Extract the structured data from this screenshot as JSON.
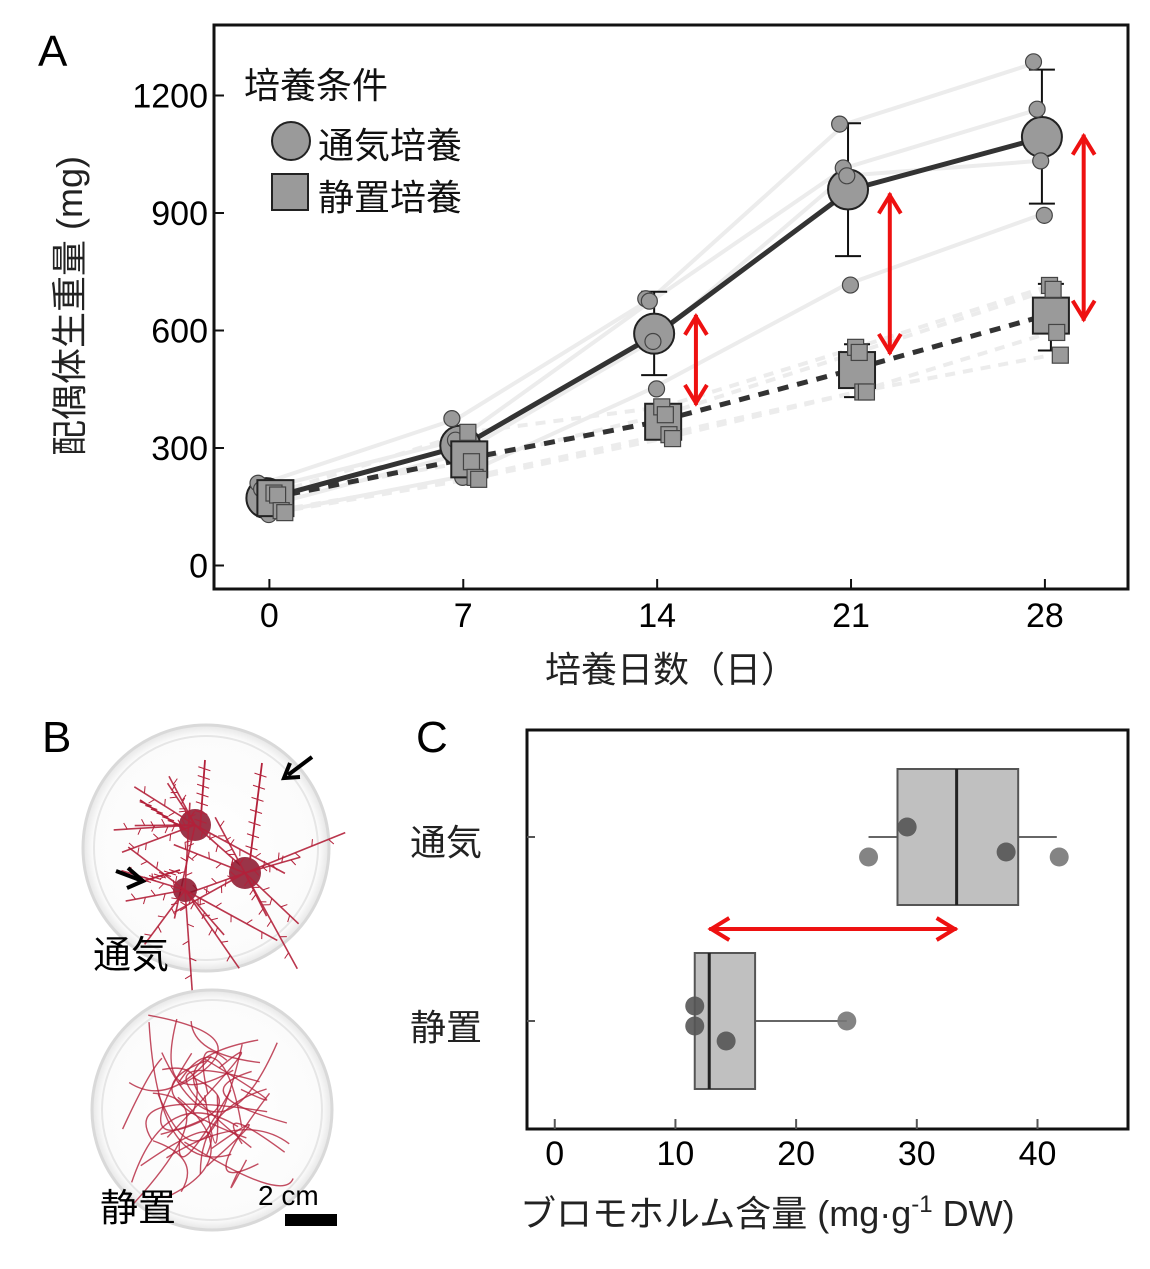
{
  "figure": {
    "panels": [
      "A",
      "B",
      "C"
    ]
  },
  "chart_data": [
    {
      "id": "A",
      "type": "line",
      "title": "",
      "xlabel": "培養日数（日）",
      "ylabel": "配偶体生重量 (mg)",
      "x": [
        0,
        7,
        14,
        21,
        28
      ],
      "x_ticks": [
        "0",
        "7",
        "14",
        "21",
        "28"
      ],
      "y_ticks": [
        "0",
        "300",
        "600",
        "900",
        "1200"
      ],
      "y_tick_values": [
        0,
        300,
        600,
        900,
        1200
      ],
      "xlim": [
        -2,
        31
      ],
      "ylim": [
        -60,
        1380
      ],
      "grid": false,
      "legend": {
        "title": "培養条件",
        "placement": "top-left",
        "entries": [
          {
            "label": "通気培養",
            "marker": "circle"
          },
          {
            "label": "静置培養",
            "marker": "square"
          }
        ]
      },
      "series": [
        {
          "name": "通気培養",
          "marker": "circle",
          "line_style": "solid",
          "mean": [
            172,
            306,
            592,
            960,
            1094
          ],
          "err_low": [
            150,
            265,
            486,
            790,
            924
          ],
          "err_high": [
            195,
            345,
            699,
            1129,
            1266
          ],
          "replicates": [
            [
              210,
              375,
              681,
              1127,
              1286
            ],
            [
              195,
              320,
              675,
              1015,
              1165
            ],
            [
              150,
              282,
              572,
              995,
              1033
            ],
            [
              130,
              225,
              451,
              716,
              894
            ]
          ]
        },
        {
          "name": "静置培養",
          "marker": "square",
          "line_style": "dashed",
          "mean": [
            172,
            271,
            367,
            499,
            638
          ],
          "err_low": [
            140,
            230,
            330,
            430,
            549
          ],
          "err_high": [
            190,
            310,
            405,
            565,
            719
          ],
          "replicates": [
            [
              185,
              340,
              405,
              557,
              715
            ],
            [
              180,
              265,
              385,
              544,
              705
            ],
            [
              140,
              225,
              334,
              443,
              595
            ],
            [
              135,
              220,
              324,
              443,
              537
            ]
          ]
        }
      ],
      "annotations": [
        {
          "type": "double-arrow",
          "x": 15.4,
          "from": 640,
          "to": 410,
          "color": "#ee1111"
        },
        {
          "type": "double-arrow",
          "x": 22.4,
          "from": 950,
          "to": 540,
          "color": "#ee1111"
        },
        {
          "type": "double-arrow",
          "x": 29.4,
          "from": 1100,
          "to": 625,
          "color": "#ee1111"
        }
      ]
    },
    {
      "id": "C",
      "type": "box",
      "title": "",
      "xlabel": "ブロモホルム含量 (mg·g⁻¹ DW)",
      "xlabel_parts": {
        "main": "ブロモホルム含量 (mg·g",
        "sup": "-1",
        "tail": " DW)"
      },
      "ylabel": "",
      "x_ticks": [
        "0",
        "10",
        "20",
        "30",
        "40"
      ],
      "x_tick_values": [
        0,
        10,
        20,
        30,
        40
      ],
      "xlim": [
        -2.3,
        47.5
      ],
      "grid": false,
      "categories": [
        "通気",
        "静置"
      ],
      "boxes": [
        {
          "name": "通気",
          "whisker_low": 26.0,
          "q1": 28.4,
          "median": 33.3,
          "q3": 38.4,
          "whisker_high": 41.6,
          "points": [
            26.0,
            29.2,
            37.4,
            41.8
          ],
          "point_offsets": [
            -0.2,
            0.1,
            -0.15,
            -0.2
          ]
        },
        {
          "name": "静置",
          "whisker_low": 11.6,
          "q1": 11.6,
          "median": 12.8,
          "q3": 16.6,
          "whisker_high": 24.2,
          "points": [
            11.6,
            11.6,
            14.2,
            24.2
          ],
          "point_offsets": [
            0.15,
            -0.05,
            -0.2,
            0
          ]
        }
      ],
      "annotations": [
        {
          "type": "double-arrow",
          "from": 12.8,
          "to": 33.3,
          "color": "#ee1111"
        }
      ]
    }
  ],
  "panel_b": {
    "label": "B",
    "photos": [
      {
        "label": "通気",
        "description": "aerated culture petri dish with branched red gametophytes",
        "arrows": 2
      },
      {
        "label": "静置",
        "description": "static culture petri dish with tangled red filaments"
      }
    ],
    "scale_bar_label": "2 cm"
  },
  "colors": {
    "marker_fill": "#9a9a9a",
    "mean_line": "#333333",
    "replicate_line": "#ececec",
    "box_fill": "#c0c0c0",
    "box_edge": "#555555",
    "box_point": "#555555",
    "box_point_outside": "#777777",
    "arrow": "#ee1111",
    "alga": "#b3213a"
  }
}
